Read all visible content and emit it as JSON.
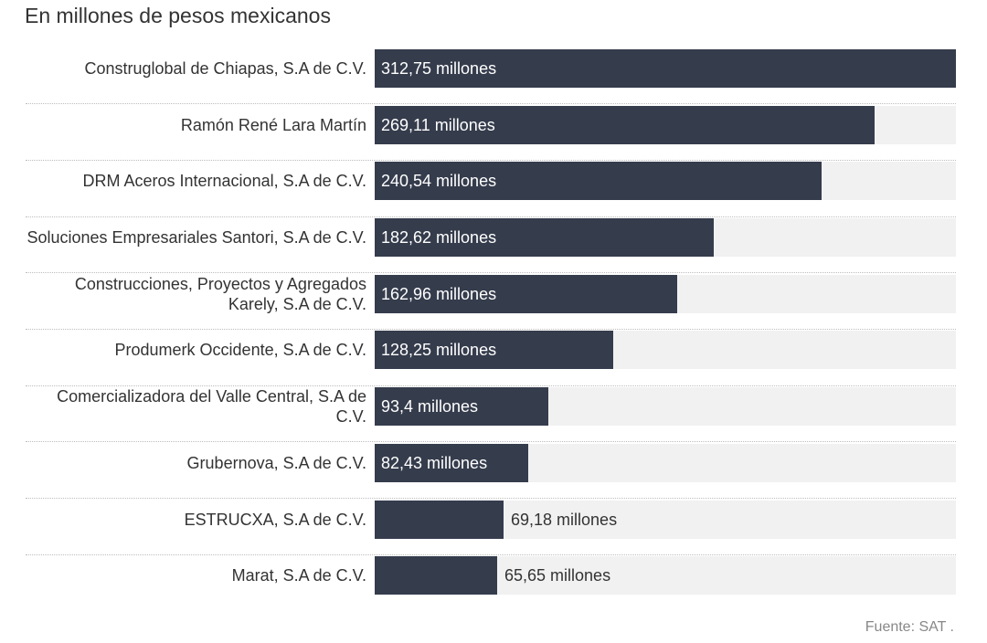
{
  "subtitle": "En millones de pesos mexicanos",
  "source": "Fuente: SAT .",
  "colors": {
    "bar": "#353c4c",
    "track": "#f1f1f1"
  },
  "chart_data": {
    "type": "bar",
    "orientation": "horizontal",
    "title": "",
    "subtitle": "En millones de pesos mexicanos",
    "xmax": 312.75,
    "categories": [
      "Construglobal de Chiapas, S.A de C.V.",
      "Ramón René Lara Martín",
      "DRM Aceros Internacional, S.A de C.V.",
      "Soluciones Empresariales Santori, S.A de C.V.",
      "Construcciones, Proyectos y Agregados Karely, S.A de C.V.",
      "Produmerk Occidente, S.A de C.V.",
      "Comercializadora del Valle Central, S.A de C.V.",
      "Grubernova, S.A de C.V.",
      "ESTRUCXA, S.A de C.V.",
      "Marat, S.A de C.V."
    ],
    "values": [
      312.75,
      269.11,
      240.54,
      182.62,
      162.96,
      128.25,
      93.4,
      82.43,
      69.18,
      65.65
    ],
    "value_labels": [
      "312,75 millones",
      "269,11 millones",
      "240,54 millones",
      "182,62 millones",
      "162,96 millones",
      "128,25 millones",
      "93,4 millones",
      "82,43 millones",
      "69,18 millones",
      "65,65 millones"
    ]
  }
}
